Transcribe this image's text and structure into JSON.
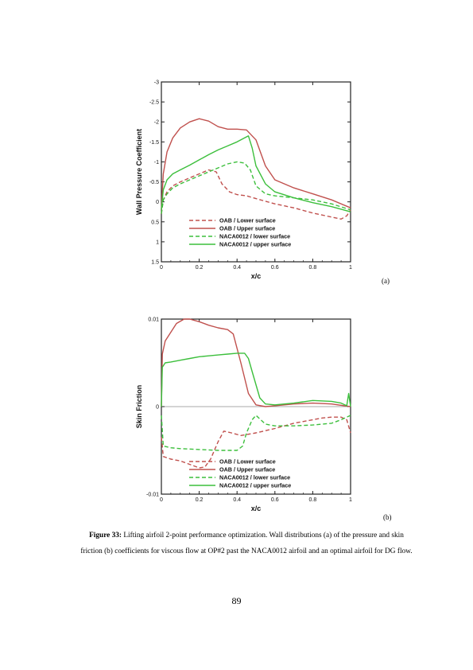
{
  "chart_data": [
    {
      "type": "line",
      "panel": "(a)",
      "xlabel": "x/c",
      "ylabel": "Wall Pressure Coefficient",
      "xlim": [
        0,
        1
      ],
      "ylim": [
        -3,
        1.5
      ],
      "y_inverted": true,
      "xticks": [
        "0",
        "0.2",
        "0.4",
        "0.6",
        "0.8",
        "1"
      ],
      "yticks": [
        "-3",
        "-2.5",
        "-2",
        "-1.5",
        "-1",
        "-0.5",
        "0",
        "0.5",
        "1",
        "1.5"
      ],
      "legend_position": "lower-center",
      "series": [
        {
          "name": "OAB / Lower surface",
          "color": "#c0504d",
          "dash": "dashed",
          "x": [
            0,
            0.01,
            0.03,
            0.06,
            0.1,
            0.15,
            0.2,
            0.25,
            0.29,
            0.32,
            0.36,
            0.4,
            0.45,
            0.5,
            0.6,
            0.7,
            0.8,
            0.9,
            0.95,
            0.98,
            1
          ],
          "y": [
            0.3,
            -0.05,
            -0.25,
            -0.4,
            -0.5,
            -0.6,
            -0.7,
            -0.8,
            -0.75,
            -0.45,
            -0.25,
            -0.18,
            -0.15,
            -0.08,
            0.05,
            0.15,
            0.28,
            0.38,
            0.43,
            0.35,
            0.2
          ]
        },
        {
          "name": "OAB / Upper surface",
          "color": "#c0504d",
          "dash": "solid",
          "x": [
            0,
            0.01,
            0.03,
            0.06,
            0.1,
            0.15,
            0.2,
            0.25,
            0.3,
            0.35,
            0.4,
            0.45,
            0.5,
            0.55,
            0.6,
            0.7,
            0.8,
            0.9,
            1
          ],
          "y": [
            0.2,
            -0.7,
            -1.25,
            -1.6,
            -1.85,
            -2.0,
            -2.08,
            -2.02,
            -1.88,
            -1.82,
            -1.82,
            -1.8,
            -1.55,
            -0.9,
            -0.55,
            -0.35,
            -0.2,
            -0.05,
            0.15
          ]
        },
        {
          "name": "NACA0012 / lower surface",
          "color": "#3cbf3c",
          "dash": "dashed",
          "x": [
            0,
            0.01,
            0.03,
            0.06,
            0.1,
            0.15,
            0.2,
            0.25,
            0.3,
            0.35,
            0.4,
            0.44,
            0.47,
            0.5,
            0.55,
            0.6,
            0.7,
            0.8,
            0.9,
            1
          ],
          "y": [
            0.3,
            -0.05,
            -0.2,
            -0.35,
            -0.45,
            -0.55,
            -0.65,
            -0.75,
            -0.85,
            -0.95,
            -1.0,
            -0.97,
            -0.8,
            -0.4,
            -0.2,
            -0.15,
            -0.1,
            -0.05,
            0.05,
            0.2
          ]
        },
        {
          "name": "NACA0012 / upper surface",
          "color": "#3cbf3c",
          "dash": "solid",
          "x": [
            0,
            0.01,
            0.03,
            0.06,
            0.1,
            0.15,
            0.2,
            0.25,
            0.3,
            0.35,
            0.4,
            0.44,
            0.46,
            0.48,
            0.5,
            0.55,
            0.6,
            0.7,
            0.8,
            0.9,
            1
          ],
          "y": [
            0.2,
            -0.3,
            -0.55,
            -0.7,
            -0.8,
            -0.92,
            -1.05,
            -1.18,
            -1.3,
            -1.4,
            -1.5,
            -1.6,
            -1.65,
            -1.35,
            -0.9,
            -0.45,
            -0.25,
            -0.1,
            0.02,
            0.12,
            0.25
          ]
        }
      ]
    },
    {
      "type": "line",
      "panel": "(b)",
      "xlabel": "x/c",
      "ylabel": "Skin Friction",
      "xlim": [
        0,
        1
      ],
      "ylim": [
        -0.01,
        0.01
      ],
      "xticks": [
        "0",
        "0.2",
        "0.4",
        "0.6",
        "0.8",
        "1"
      ],
      "yticks": [
        "-0.01",
        "0",
        "0.01"
      ],
      "zero_line": true,
      "legend_position": "lower-center",
      "series": [
        {
          "name": "OAB / Lower surface",
          "color": "#c0504d",
          "dash": "dashed",
          "x": [
            0,
            0.01,
            0.05,
            0.1,
            0.15,
            0.2,
            0.23,
            0.26,
            0.3,
            0.33,
            0.37,
            0.42,
            0.5,
            0.6,
            0.7,
            0.8,
            0.85,
            0.9,
            0.95,
            0.98,
            1
          ],
          "y": [
            -0.0035,
            -0.0057,
            -0.006,
            -0.0062,
            -0.0066,
            -0.007,
            -0.0069,
            -0.006,
            -0.004,
            -0.0028,
            -0.003,
            -0.0033,
            -0.003,
            -0.0025,
            -0.0019,
            -0.0015,
            -0.0013,
            -0.0012,
            -0.0012,
            -0.0015,
            -0.003
          ]
        },
        {
          "name": "OAB / Upper surface",
          "color": "#c0504d",
          "dash": "solid",
          "x": [
            0,
            0.005,
            0.02,
            0.05,
            0.08,
            0.12,
            0.15,
            0.2,
            0.25,
            0.3,
            0.35,
            0.38,
            0.42,
            0.46,
            0.5,
            0.55,
            0.6,
            0.7,
            0.8,
            0.9,
            1
          ],
          "y": [
            0.0,
            0.006,
            0.0075,
            0.0085,
            0.0095,
            0.01,
            0.01,
            0.0097,
            0.0093,
            0.009,
            0.0088,
            0.0083,
            0.005,
            0.0015,
            0.0002,
            0.0,
            0.0001,
            0.0003,
            0.0004,
            0.0003,
            0.0
          ]
        },
        {
          "name": "NACA0012 / lower surface",
          "color": "#3cbf3c",
          "dash": "dashed",
          "x": [
            0,
            0.01,
            0.05,
            0.1,
            0.2,
            0.3,
            0.4,
            0.43,
            0.45,
            0.48,
            0.5,
            0.55,
            0.6,
            0.7,
            0.8,
            0.9,
            0.95,
            0.98,
            1
          ],
          "y": [
            -0.001,
            -0.0045,
            -0.0047,
            -0.0048,
            -0.0049,
            -0.005,
            -0.005,
            -0.0045,
            -0.003,
            -0.0015,
            -0.001,
            -0.002,
            -0.0022,
            -0.0022,
            -0.0021,
            -0.0019,
            -0.0015,
            -0.0012,
            -0.001
          ]
        },
        {
          "name": "NACA0012 / upper surface",
          "color": "#3cbf3c",
          "dash": "solid",
          "x": [
            0,
            0.005,
            0.02,
            0.05,
            0.1,
            0.15,
            0.2,
            0.25,
            0.3,
            0.35,
            0.4,
            0.44,
            0.46,
            0.48,
            0.5,
            0.52,
            0.55,
            0.6,
            0.7,
            0.8,
            0.9,
            0.95,
            0.98,
            0.99,
            1
          ],
          "y": [
            0.0,
            0.0045,
            0.005,
            0.0051,
            0.0053,
            0.0055,
            0.0057,
            0.0058,
            0.0059,
            0.006,
            0.0061,
            0.0061,
            0.0055,
            0.004,
            0.0025,
            0.001,
            0.0003,
            0.0002,
            0.0004,
            0.0007,
            0.0006,
            0.0004,
            0.0001,
            0.0015,
            0.0
          ]
        }
      ]
    }
  ],
  "caption": {
    "label": "Figure 33:",
    "text": " Lifting airfoil 2-point performance optimization. Wall distributions (a) of the pressure and skin friction (b) coefficients for viscous flow at OP#2 past the NACA0012 airfoil and an optimal airfoil for DG flow."
  },
  "page_number": "89"
}
